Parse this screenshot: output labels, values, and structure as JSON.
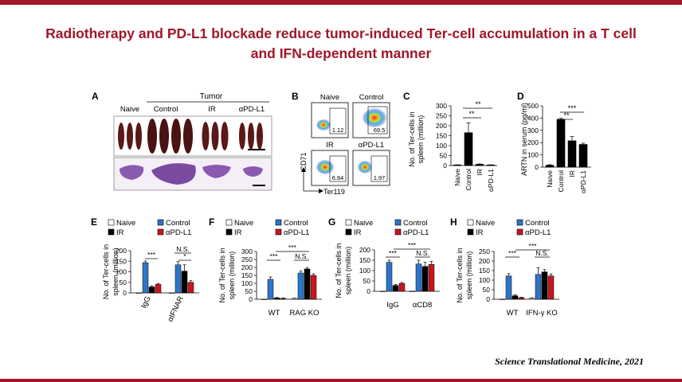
{
  "title_line1": "Radiotherapy and PD-L1 blockade reduce tumor-induced Ter-cell accumulation in a T cell",
  "title_line2": "and IFN-dependent manner",
  "source": "Science Translational Medicine, 2021",
  "colors": {
    "accent": "#a0162a",
    "naive": "#ffffff",
    "control": "#2e75c9",
    "ir": "#000000",
    "pdl1": "#c8161d"
  },
  "panel_a": {
    "label": "A",
    "tumor_label": "Tumor",
    "groups": [
      "Naive",
      "Control",
      "IR",
      "αPD-L1"
    ]
  },
  "panel_b": {
    "label": "B",
    "plots": [
      {
        "name": "Naive",
        "value": "1.12"
      },
      {
        "name": "Control",
        "value": "69.5"
      },
      {
        "name": "IR",
        "value": "6.84"
      },
      {
        "name": "αPD-L1",
        "value": "1.97"
      }
    ],
    "y_axis": "CD71",
    "x_axis": "Ter119"
  },
  "panel_c": {
    "label": "C",
    "ylabel_1": "No. of Ter-cells in",
    "ylabel_2": "spleen (million)",
    "ticks": [
      "0",
      "50",
      "100",
      "150",
      "200",
      "250",
      "300"
    ],
    "sig": [
      "**",
      "**"
    ],
    "categories": [
      "Naive",
      "Control",
      "IR",
      "αPD-L1"
    ]
  },
  "panel_d": {
    "label": "D",
    "ylabel": "ARTN in serum (pg/ml)",
    "ticks": [
      "0",
      "100",
      "200",
      "300",
      "400",
      "500"
    ],
    "sig": [
      "**",
      "***"
    ],
    "categories": [
      "Naive",
      "Control",
      "IR",
      "αPD-L1"
    ]
  },
  "legend": {
    "naive": "Naive",
    "control": "Control",
    "ir": "IR",
    "pdl1": "αPD-L1"
  },
  "panel_e": {
    "label": "E",
    "ylabel_1": "No. of Ter-cells in",
    "ylabel_2": "spleen (million)",
    "ticks": [
      "0",
      "50",
      "100",
      "150",
      "200"
    ],
    "sig": [
      "***",
      "N.S.",
      "*"
    ],
    "groups": [
      "IgG",
      "αIFNAR"
    ]
  },
  "panel_f": {
    "label": "F",
    "ylabel_1": "No. of Ter-cells in",
    "ylabel_2": "spleen (million)",
    "ticks": [
      "0",
      "50",
      "100",
      "150",
      "200",
      "250",
      "300"
    ],
    "sig": [
      "***",
      "***",
      "N.S."
    ],
    "groups": [
      "WT",
      "RAG KO"
    ]
  },
  "panel_g": {
    "label": "G",
    "ylabel_1": "No. of Ter-cells in",
    "ylabel_2": "spleen (million)",
    "ticks": [
      "0",
      "50",
      "100",
      "150",
      "200"
    ],
    "sig": [
      "***",
      "***",
      "N.S."
    ],
    "groups": [
      "IgG",
      "αCD8"
    ]
  },
  "panel_h": {
    "label": "H",
    "ylabel_1": "No. of Ter-cells in",
    "ylabel_2": "spleen (million)",
    "ticks": [
      "0",
      "50",
      "100",
      "150",
      "200",
      "250"
    ],
    "sig": [
      "***",
      "***",
      "N.S."
    ],
    "groups": [
      "WT",
      "IFN-γ KO"
    ]
  },
  "chart_data": [
    {
      "type": "bar",
      "categories": [
        "Naive",
        "Control",
        "IR",
        "αPD-L1"
      ],
      "values": [
        3,
        165,
        6,
        3
      ],
      "ylabel": "No. of Ter-cells in spleen (million)",
      "ylim": [
        0,
        300
      ]
    },
    {
      "type": "bar",
      "categories": [
        "Naive",
        "Control",
        "IR",
        "αPD-L1"
      ],
      "values": [
        15,
        390,
        215,
        185
      ],
      "ylabel": "ARTN in serum (pg/ml)",
      "ylim": [
        0,
        500
      ]
    },
    {
      "type": "bar",
      "categories": [
        "IgG",
        "αIFNAR"
      ],
      "series": [
        {
          "name": "Naive",
          "values": [
            0,
            0
          ]
        },
        {
          "name": "Control",
          "values": [
            143,
            133
          ]
        },
        {
          "name": "IR",
          "values": [
            28,
            103
          ]
        },
        {
          "name": "αPD-L1",
          "values": [
            40,
            50
          ]
        }
      ],
      "ylim": [
        0,
        200
      ]
    },
    {
      "type": "bar",
      "categories": [
        "WT",
        "RAG KO"
      ],
      "series": [
        {
          "name": "Naive",
          "values": [
            0,
            5
          ]
        },
        {
          "name": "Control",
          "values": [
            125,
            165
          ]
        },
        {
          "name": "IR",
          "values": [
            8,
            190
          ]
        },
        {
          "name": "αPD-L1",
          "values": [
            5,
            150
          ]
        }
      ],
      "ylim": [
        0,
        300
      ]
    },
    {
      "type": "bar",
      "categories": [
        "IgG",
        "αCD8"
      ],
      "series": [
        {
          "name": "Naive",
          "values": [
            0,
            0
          ]
        },
        {
          "name": "Control",
          "values": [
            140,
            132
          ]
        },
        {
          "name": "IR",
          "values": [
            28,
            120
          ]
        },
        {
          "name": "αPD-L1",
          "values": [
            38,
            130
          ]
        }
      ],
      "ylim": [
        0,
        200
      ]
    },
    {
      "type": "bar",
      "categories": [
        "WT",
        "IFN-γ KO"
      ],
      "series": [
        {
          "name": "Naive",
          "values": [
            0,
            5
          ]
        },
        {
          "name": "Control",
          "values": [
            122,
            130
          ]
        },
        {
          "name": "IR",
          "values": [
            18,
            143
          ]
        },
        {
          "name": "αPD-L1",
          "values": [
            8,
            122
          ]
        }
      ],
      "ylim": [
        0,
        250
      ]
    }
  ]
}
